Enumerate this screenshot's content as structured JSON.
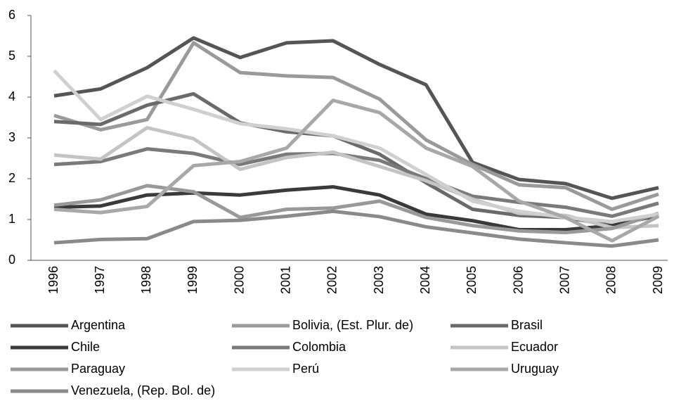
{
  "chart_data": {
    "type": "line",
    "categories": [
      "1996",
      "1997",
      "1998",
      "1999",
      "2000",
      "2001",
      "2002",
      "2003",
      "2004",
      "2005",
      "2006",
      "2007",
      "2008",
      "2009"
    ],
    "series": [
      {
        "name": "Argentina",
        "color": "#555555",
        "values": [
          4.03,
          4.2,
          4.72,
          5.45,
          4.97,
          5.33,
          5.38,
          4.8,
          4.3,
          2.4,
          1.98,
          1.88,
          1.52,
          1.78
        ]
      },
      {
        "name": "Bolivia, (Est. Plur. de)",
        "color": "#9a9a9a",
        "values": [
          3.55,
          3.2,
          3.45,
          5.33,
          4.6,
          4.52,
          4.48,
          3.95,
          2.95,
          2.35,
          1.85,
          1.78,
          1.25,
          1.62
        ]
      },
      {
        "name": "Brasil",
        "color": "#6a6a6a",
        "values": [
          3.4,
          3.33,
          3.8,
          4.08,
          3.37,
          3.15,
          3.05,
          2.6,
          1.9,
          1.25,
          1.1,
          1.05,
          0.85,
          1.1
        ]
      },
      {
        "name": "Chile",
        "color": "#3a3a3a",
        "values": [
          1.3,
          1.33,
          1.6,
          1.65,
          1.6,
          1.72,
          1.8,
          1.6,
          1.13,
          0.97,
          0.75,
          0.75,
          0.85,
          1.1
        ]
      },
      {
        "name": "Colombia",
        "color": "#7a7a7a",
        "values": [
          2.35,
          2.42,
          2.73,
          2.62,
          2.35,
          2.6,
          2.62,
          2.45,
          2.0,
          1.57,
          1.42,
          1.3,
          1.08,
          1.4
        ]
      },
      {
        "name": "Ecuador",
        "color": "#c4c4c4",
        "values": [
          2.58,
          2.48,
          3.25,
          2.98,
          2.23,
          2.52,
          2.65,
          2.3,
          1.95,
          1.5,
          1.15,
          1.1,
          0.8,
          0.85
        ]
      },
      {
        "name": "Paraguay",
        "color": "#999999",
        "values": [
          1.35,
          1.48,
          1.83,
          1.68,
          1.05,
          1.25,
          1.28,
          1.45,
          1.05,
          0.85,
          0.72,
          0.68,
          0.78,
          1.15
        ]
      },
      {
        "name": "Perú",
        "color": "#d0d0d0",
        "values": [
          4.65,
          3.45,
          4.02,
          3.7,
          3.35,
          3.22,
          3.05,
          2.75,
          2.1,
          1.45,
          1.2,
          1.05,
          0.95,
          1.13
        ]
      },
      {
        "name": "Uruguay",
        "color": "#a8a8a8",
        "values": [
          1.25,
          1.17,
          1.32,
          2.32,
          2.42,
          2.75,
          3.92,
          3.62,
          2.75,
          2.3,
          1.45,
          1.05,
          0.48,
          1.08
        ]
      },
      {
        "name": "Venezuela, (Rep. Bol. de)",
        "color": "#8a8a8a",
        "values": [
          0.43,
          0.51,
          0.53,
          0.95,
          0.98,
          1.08,
          1.2,
          1.07,
          0.82,
          0.67,
          0.52,
          0.43,
          0.35,
          0.5
        ]
      }
    ],
    "ylim": [
      0,
      6
    ],
    "yticks": [
      0,
      1,
      2,
      3,
      4,
      5,
      6
    ],
    "grid": false,
    "legend": "bottom"
  }
}
